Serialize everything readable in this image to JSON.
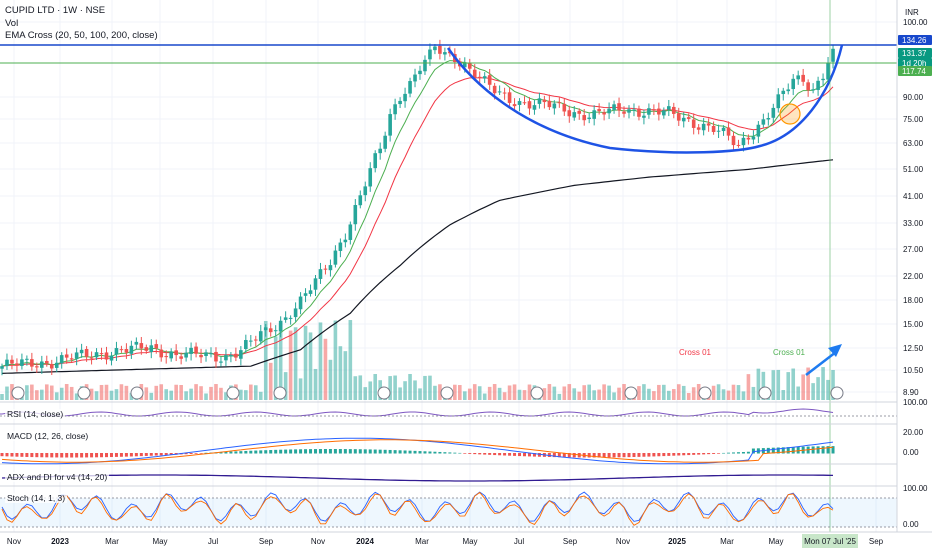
{
  "header": {
    "title": "CUPID LTD · 1W · NSE",
    "vol_label": "Vol",
    "ema_label": "EMA Cross (20, 50, 100, 200, close)"
  },
  "currency": "INR",
  "indicators": {
    "rsi": "RSI (14, close)",
    "macd": "MACD (12, 26, close)",
    "adx": "ADX and DI for v4 (14, 20)",
    "stoch": "Stoch (14, 1, 3)"
  },
  "price_tags": {
    "top": "134.26",
    "current": "131.37",
    "countdown": "1d 20h",
    "level": "117.74"
  },
  "annotations": {
    "cross1": "Cross 01",
    "cross2": "Cross 01"
  },
  "colors": {
    "up": "#26a69a",
    "down": "#ef5350",
    "ema20": "#4caf50",
    "ema50": "#f23645",
    "ema200": "#131722",
    "cup": "#1e53e5",
    "level_blue": "#1848cc",
    "level_green": "#4caf50"
  },
  "chart_data": {
    "type": "candlestick",
    "symbol": "CUPID LTD",
    "interval": "1W",
    "exchange": "NSE",
    "y_axis_ticks": [
      "100.00",
      "90.00",
      "75.00",
      "63.00",
      "51.00",
      "41.00",
      "33.00",
      "27.00",
      "22.00",
      "18.00",
      "15.00",
      "12.50",
      "10.50",
      "8.90"
    ],
    "x_axis_ticks": [
      "Nov",
      "2023",
      "Mar",
      "May",
      "Jul",
      "Sep",
      "Nov",
      "2024",
      "Mar",
      "May",
      "Jul",
      "Sep",
      "Nov",
      "2025",
      "Mar",
      "May",
      "Mon 07 Jul '25",
      "Sep"
    ],
    "ylim": [
      8.2,
      138
    ],
    "scale": "log",
    "levels": [
      134.26,
      117.74
    ],
    "weekly_close_points": [
      [
        0,
        10.9
      ],
      [
        10,
        11.3
      ],
      [
        20,
        12.1
      ],
      [
        30,
        12.6
      ],
      [
        35,
        11.9
      ],
      [
        45,
        11.8
      ],
      [
        48,
        12.3
      ],
      [
        52,
        13.9
      ],
      [
        56,
        15.5
      ],
      [
        60,
        18.0
      ],
      [
        63,
        21.0
      ],
      [
        66,
        25.0
      ],
      [
        69,
        31.0
      ],
      [
        72,
        41.0
      ],
      [
        74,
        50.0
      ],
      [
        76,
        60.0
      ],
      [
        78,
        78.0
      ],
      [
        80,
        92.0
      ],
      [
        82,
        100.0
      ],
      [
        84,
        113.0
      ],
      [
        86,
        123.0
      ],
      [
        87,
        132.0
      ],
      [
        89,
        126.0
      ],
      [
        91,
        124.0
      ],
      [
        93,
        116.0
      ],
      [
        95,
        108.0
      ],
      [
        97,
        100.0
      ],
      [
        99,
        94.0
      ],
      [
        101,
        90.0
      ],
      [
        104,
        87.0
      ],
      [
        107,
        85.0
      ],
      [
        110,
        84.0
      ],
      [
        113,
        82.0
      ],
      [
        116,
        79.0
      ],
      [
        119,
        78.0
      ],
      [
        122,
        80.0
      ],
      [
        125,
        82.0
      ],
      [
        128,
        81.0
      ],
      [
        131,
        80.0
      ],
      [
        134,
        79.0
      ],
      [
        137,
        76.0
      ],
      [
        140,
        73.0
      ],
      [
        143,
        70.0
      ],
      [
        146,
        65.0
      ],
      [
        148,
        61.0
      ],
      [
        150,
        67.0
      ],
      [
        153,
        75.0
      ],
      [
        156,
        87.0
      ],
      [
        159,
        102.0
      ],
      [
        161,
        104.0
      ],
      [
        163,
        96.0
      ],
      [
        165,
        108.0
      ],
      [
        166,
        120.0
      ],
      [
        167,
        131.37
      ]
    ],
    "series": [
      {
        "name": "EMA 20",
        "color": "#4caf50"
      },
      {
        "name": "EMA 50",
        "color": "#f23645"
      },
      {
        "name": "EMA 200",
        "color": "#131722"
      }
    ]
  }
}
